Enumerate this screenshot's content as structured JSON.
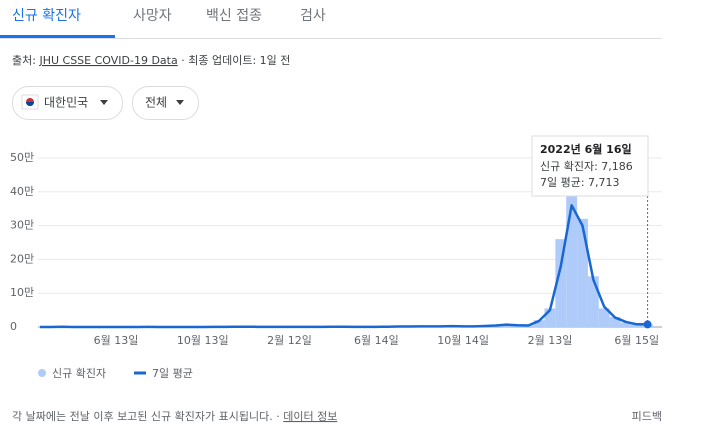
{
  "tabs": [
    "신규 확진자",
    "사망자",
    "백신 접종",
    "검사"
  ],
  "source": {
    "prefix": "출처: ",
    "link": "JHU CSSE COVID-19 Data",
    "suffix": " · 최종 업데이트: 1일 전"
  },
  "filters": [
    "대한민국",
    "전체"
  ],
  "chart_data": {
    "type": "bar-line",
    "categories": [
      null,
      null,
      null,
      null,
      null,
      null,
      null,
      "6월 13일",
      null,
      null,
      null,
      null,
      null,
      null,
      null,
      "10월 13일",
      null,
      null,
      null,
      null,
      null,
      null,
      null,
      "2월 12일",
      null,
      null,
      null,
      null,
      null,
      null,
      null,
      "6월 14일",
      null,
      null,
      null,
      null,
      null,
      null,
      null,
      "10월 14일",
      null,
      null,
      null,
      null,
      null,
      null,
      null,
      "2월 13일",
      null,
      null,
      null,
      null,
      null,
      null,
      null,
      "6월 15일",
      null
    ],
    "series": [
      {
        "name": "신규 확진자",
        "color": "#aecbfa",
        "kind": "bar",
        "values": [
          0,
          30,
          800,
          90,
          50,
          45,
          35,
          45,
          60,
          180,
          230,
          110,
          90,
          70,
          110,
          130,
          280,
          550,
          1000,
          750,
          520,
          380,
          430,
          470,
          400,
          480,
          580,
          620,
          750,
          520,
          480,
          520,
          850,
          1600,
          1450,
          1900,
          1700,
          2100,
          2700,
          1600,
          1900,
          3000,
          4800,
          7200,
          4800,
          4600,
          20000,
          55000,
          260000,
          450000,
          320000,
          150000,
          55000,
          30000,
          13000,
          7500,
          7186
        ]
      },
      {
        "name": "7일 평균",
        "color": "#1967d2",
        "kind": "line",
        "values": [
          0,
          20,
          600,
          100,
          60,
          40,
          40,
          40,
          50,
          150,
          250,
          120,
          80,
          80,
          100,
          120,
          250,
          500,
          900,
          800,
          500,
          400,
          400,
          450,
          420,
          450,
          550,
          600,
          700,
          550,
          500,
          500,
          800,
          1500,
          1500,
          1800,
          1800,
          2000,
          2500,
          1800,
          1800,
          2800,
          4500,
          7000,
          5000,
          4500,
          18000,
          50000,
          180000,
          360000,
          300000,
          140000,
          60000,
          28000,
          15000,
          8000,
          7713
        ]
      }
    ],
    "ylim": [
      0,
      500000
    ],
    "yticks": [
      0,
      {
        "value": 100000,
        "label": "10만"
      },
      {
        "value": 200000,
        "label": "20만"
      },
      {
        "value": 300000,
        "label": "30만"
      },
      {
        "value": 400000,
        "label": "40만"
      },
      {
        "value": 500000,
        "label": "50만"
      }
    ],
    "grid": true,
    "tooltip": {
      "title": "2022년 6월 16일",
      "lines": [
        "신규 확진자: 7,186",
        "7일 평균: 7,713"
      ]
    }
  },
  "footer": {
    "note": "각 날짜에는 전날 이후 보고된 신규 확진자가 표시됩니다.  ·  ",
    "link": "데이터 정보",
    "feedback": "피드백"
  }
}
